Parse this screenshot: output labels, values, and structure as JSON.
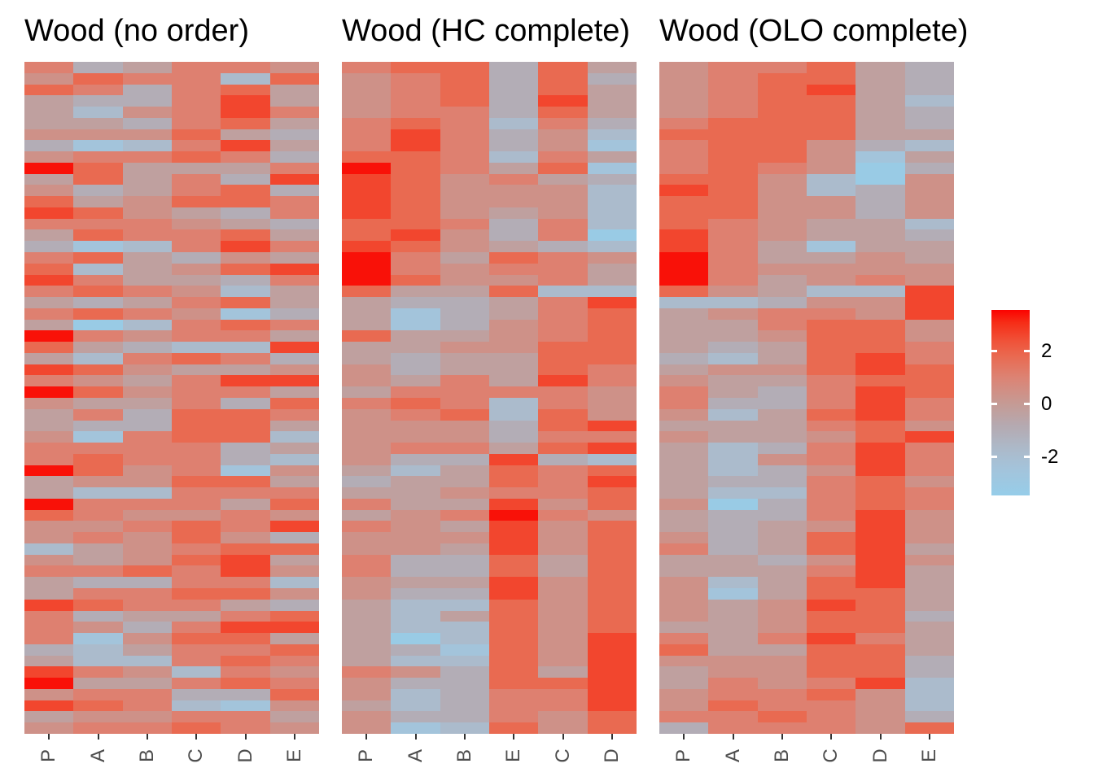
{
  "chart_data": {
    "type": "heatmap",
    "description": "Three heatmaps of the Wood data matrix under different row/column orderings, red = high, light blue = low",
    "grid": "off",
    "legend_position": "right",
    "panels": [
      {
        "title": "Wood (no order)",
        "columns": [
          "P",
          "A",
          "B",
          "C",
          "D",
          "E"
        ],
        "rows": [
          "634665",
          "576627",
          "763674",
          "433684",
          "425686",
          "443674",
          "555743",
          "312684",
          "566763",
          "974446",
          "474638",
          "534673",
          "745776",
          "875436",
          "666543",
          "476674",
          "312686",
          "674354",
          "724578",
          "864436",
          "676524",
          "434674",
          "676513",
          "402676",
          "965664",
          "743228",
          "426763",
          "875445",
          "654688",
          "975664",
          "544637",
          "463776",
          "433774",
          "516772",
          "666634",
          "676632",
          "975615",
          "455774",
          "422666",
          "966647",
          "765565",
          "556768",
          "565753",
          "245677",
          "545784",
          "667685",
          "433662",
          "466775",
          "876643",
          "634467",
          "653688",
          "615774",
          "324667",
          "422676",
          "865265",
          "944676",
          "566337",
          "876215",
          "455664",
          "566765"
        ]
      },
      {
        "title": "Wood (HC complete)",
        "columns": [
          "P",
          "A",
          "B",
          "E",
          "C",
          "D"
        ],
        "rows": [
          "677374",
          "567373",
          "567374",
          "567384",
          "566374",
          "676263",
          "686352",
          "686351",
          "776264",
          "976471",
          "875643",
          "875552",
          "875552",
          "875452",
          "776362",
          "785360",
          "875432",
          "964765",
          "965664",
          "975564",
          "744722",
          "433468",
          "413467",
          "413567",
          "744567",
          "445577",
          "434477",
          "534476",
          "546486",
          "466665",
          "676265",
          "567275",
          "555378",
          "555366",
          "566478",
          "533832",
          "424767",
          "344768",
          "445667",
          "644857",
          "456965",
          "654857",
          "555857",
          "554857",
          "633747",
          "633747",
          "544857",
          "533857",
          "422757",
          "424757",
          "422757",
          "402758",
          "431758",
          "422758",
          "653748",
          "533778",
          "523668",
          "423668",
          "533657",
          "512757"
        ]
      },
      {
        "title": "Wood (OLO complete)",
        "columns": [
          "P",
          "A",
          "B",
          "C",
          "D",
          "E"
        ],
        "rows": [
          "566743",
          "567743",
          "567843",
          "567742",
          "567743",
          "677743",
          "777744",
          "677532",
          "677514",
          "676503",
          "775205",
          "875235",
          "775535",
          "775535",
          "765442",
          "865443",
          "864144",
          "964454",
          "965555",
          "964565",
          "754228",
          "223558",
          "456658",
          "446775",
          "445775",
          "434776",
          "324786",
          "455787",
          "544677",
          "643687",
          "633686",
          "524786",
          "444675",
          "544578",
          "423686",
          "425686",
          "423586",
          "433675",
          "422676",
          "503676",
          "433685",
          "434585",
          "534785",
          "634784",
          "443585",
          "444684",
          "524784",
          "514774",
          "545874",
          "545773",
          "445774",
          "646864",
          "744774",
          "555773",
          "455773",
          "465682",
          "566752",
          "576652",
          "667653",
          "366657"
        ]
      }
    ],
    "value_encoding": {
      "note": "each row string holds one quantized z-score level (0-9) per column, mapped to values below",
      "level_values": [
        -3.2,
        -2.5,
        -1.8,
        -1.0,
        -0.3,
        0.4,
        1.1,
        1.8,
        2.6,
        3.4
      ]
    },
    "colorscale": [
      {
        "v": 3.56,
        "c": "#fb0300"
      },
      {
        "v": 3.1,
        "c": "#f62c16"
      },
      {
        "v": 2.4,
        "c": "#f05138"
      },
      {
        "v": 1.8,
        "c": "#e96a51"
      },
      {
        "v": 1.0,
        "c": "#dc8374"
      },
      {
        "v": 0.0,
        "c": "#c59b95"
      },
      {
        "v": -0.8,
        "c": "#b5a9b0"
      },
      {
        "v": -1.6,
        "c": "#adb8c7"
      },
      {
        "v": -2.4,
        "c": "#a4c3da"
      },
      {
        "v": -3.45,
        "c": "#96cde9"
      }
    ],
    "legend": {
      "range": [
        -3.45,
        3.56
      ],
      "ticks": [
        {
          "value": 2,
          "label": "2"
        },
        {
          "value": 0,
          "label": "0"
        },
        {
          "value": -2,
          "label": "-2"
        }
      ]
    }
  }
}
